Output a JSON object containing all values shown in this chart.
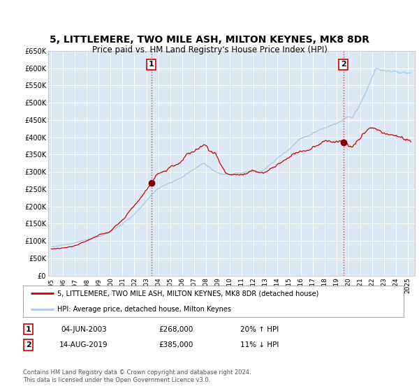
{
  "title": "5, LITTLEMERE, TWO MILE ASH, MILTON KEYNES, MK8 8DR",
  "subtitle": "Price paid vs. HM Land Registry's House Price Index (HPI)",
  "title_fontsize": 10,
  "subtitle_fontsize": 8.5,
  "bg_color": "#ffffff",
  "plot_bg_color": "#dce9f5",
  "grid_color": "#ffffff",
  "sale1_date": "2003-06-04",
  "sale1_price": 268000,
  "sale1_label": "1",
  "sale1_pct": "20% ↑ HPI",
  "sale1_display": "04-JUN-2003",
  "sale2_date": "2019-08-14",
  "sale2_price": 385000,
  "sale2_label": "2",
  "sale2_pct": "11% ↓ HPI",
  "sale2_display": "14-AUG-2019",
  "legend_line1": "5, LITTLEMERE, TWO MILE ASH, MILTON KEYNES, MK8 8DR (detached house)",
  "legend_line2": "HPI: Average price, detached house, Milton Keynes",
  "footer": "Contains HM Land Registry data © Crown copyright and database right 2024.\nThis data is licensed under the Open Government Licence v3.0.",
  "hpi_color": "#a8c8e8",
  "property_color": "#cc0000",
  "marker_color": "#880000",
  "annotation_box_color": "#cc0000",
  "dashed_line_color": "#cc3333",
  "ylim": [
    0,
    650000
  ],
  "yticks": [
    0,
    50000,
    100000,
    150000,
    200000,
    250000,
    300000,
    350000,
    400000,
    450000,
    500000,
    550000,
    600000,
    650000
  ],
  "start_year": 1995,
  "end_year": 2025
}
